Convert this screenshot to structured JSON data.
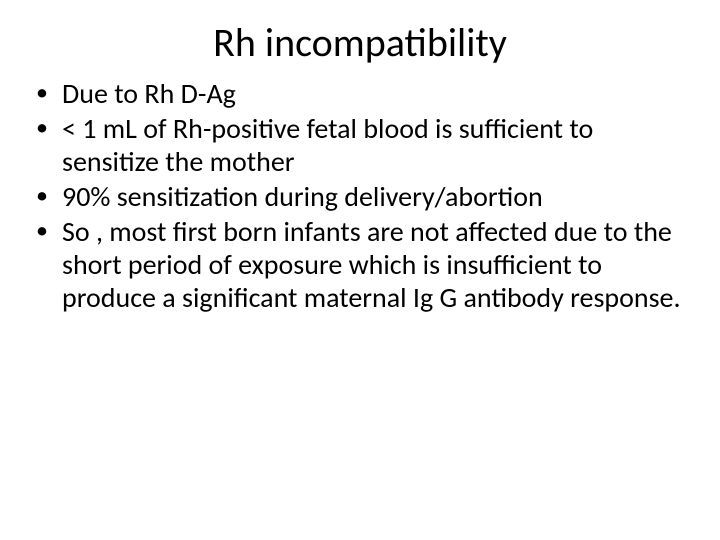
{
  "slide": {
    "title": "Rh incompatibility",
    "bullets": [
      "Due to Rh D-Ag",
      "< 1 mL of Rh-positive  fetal blood is sufficient to sensitize the mother",
      "90% sensitization during delivery/abortion",
      "So , most first born infants  are not affected due to  the short period of exposure  which  is insufficient to produce a significant maternal Ig G antibody response."
    ],
    "title_fontsize": 40,
    "body_fontsize": 28,
    "text_color": "#000000",
    "background_color": "#ffffff"
  }
}
